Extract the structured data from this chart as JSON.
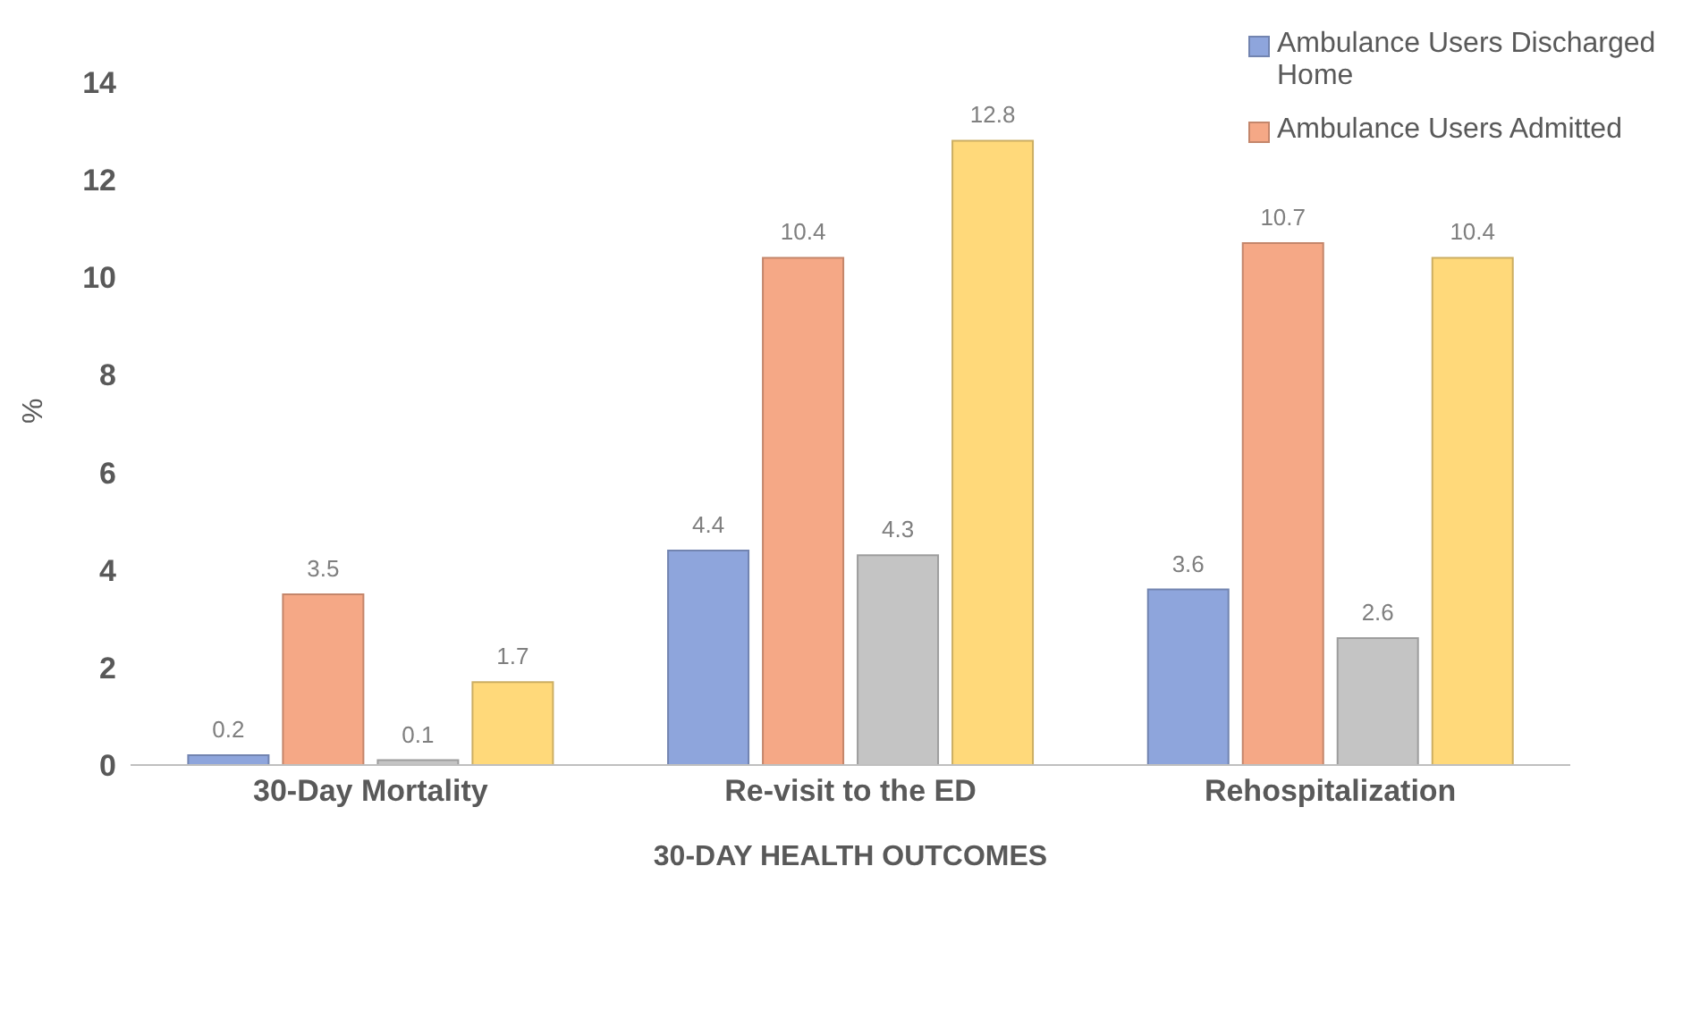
{
  "chart_data": {
    "type": "bar",
    "xlabel": "30-DAY HEALTH OUTCOMES",
    "ylabel": "%",
    "categories": [
      "30-Day Mortality",
      "Re-visit to the ED",
      "Rehospitalization"
    ],
    "series": [
      {
        "name": "Ambulance Users Discharged Home",
        "color": "#8ea5dc",
        "values": [
          0.2,
          4.4,
          3.6
        ]
      },
      {
        "name": "Ambulance Users Admitted",
        "color": "#f5a886",
        "values": [
          3.5,
          10.4,
          10.7
        ]
      },
      {
        "color": "#c4c4c4",
        "values": [
          0.1,
          4.3,
          2.6
        ]
      },
      {
        "color": "#ffd97a",
        "values": [
          1.7,
          12.8,
          10.4
        ]
      }
    ],
    "ylim": [
      0,
      14
    ],
    "yticks": [
      0,
      2,
      4,
      6,
      8,
      10,
      12,
      14
    ],
    "grid": false,
    "legend": "top right",
    "data_labels": true
  }
}
